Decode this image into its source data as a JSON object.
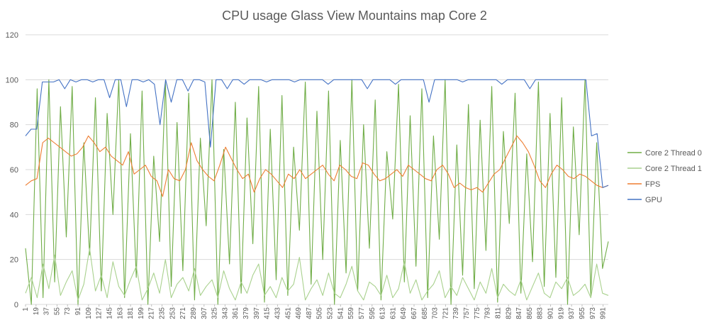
{
  "chart_data": {
    "type": "line",
    "title": "CPU usage Glass View Mountains map Core 2",
    "xlabel": "",
    "ylabel": "",
    "ylim": [
      0,
      120
    ],
    "yticks": [
      "0",
      "20",
      "40",
      "60",
      "80",
      "100",
      "120"
    ],
    "x_range": [
      1,
      1000
    ],
    "x_tick_start": 1,
    "x_tick_step": 18,
    "grid": true,
    "legend_position": "right",
    "series": [
      {
        "name": "Core 2 Thread 0",
        "color": "#70ad47",
        "values": [
          25,
          0,
          96,
          3,
          100,
          10,
          88,
          30,
          97,
          0,
          72,
          22,
          92,
          6,
          85,
          40,
          100,
          3,
          76,
          12,
          95,
          0,
          66,
          28,
          99,
          8,
          81,
          15,
          94,
          2,
          74,
          35,
          100,
          0,
          69,
          18,
          90,
          5,
          83,
          27,
          97,
          1,
          78,
          11,
          93,
          4,
          70,
          33,
          99,
          9,
          86,
          20,
          95,
          0,
          73,
          14,
          100,
          6,
          80,
          25,
          91,
          2,
          68,
          38,
          98,
          10,
          84,
          17,
          96,
          3,
          75,
          29,
          100,
          0,
          71,
          13,
          89,
          7,
          82,
          24,
          97,
          1,
          77,
          36,
          94,
          5,
          67,
          19,
          99,
          8,
          85,
          12,
          92,
          0,
          79,
          31,
          100,
          4,
          72,
          16,
          28
        ]
      },
      {
        "name": "Core 2 Thread 1",
        "color": "#a9d18e",
        "values": [
          5,
          12,
          3,
          18,
          7,
          22,
          4,
          10,
          15,
          2,
          9,
          25,
          6,
          13,
          3,
          19,
          8,
          4,
          11,
          17,
          2,
          7,
          14,
          5,
          20,
          3,
          9,
          12,
          6,
          16,
          4,
          8,
          11,
          3,
          15,
          7,
          2,
          10,
          5,
          13,
          18,
          4,
          8,
          3,
          12,
          6,
          9,
          21,
          2,
          7,
          11,
          4,
          14,
          5,
          3,
          9,
          17,
          6,
          2,
          10,
          8,
          4,
          13,
          3,
          7,
          19,
          5,
          11,
          2,
          6,
          9,
          15,
          3,
          8,
          4,
          12,
          7,
          2,
          10,
          5,
          16,
          3,
          9,
          6,
          4,
          11,
          2,
          8,
          14,
          5,
          3,
          10,
          7,
          12,
          4,
          6,
          9,
          3,
          18,
          5,
          4
        ]
      },
      {
        "name": "FPS",
        "color": "#ed7d31",
        "values": [
          53,
          55,
          56,
          72,
          74,
          72,
          70,
          68,
          66,
          67,
          70,
          75,
          72,
          68,
          70,
          66,
          64,
          62,
          68,
          58,
          60,
          62,
          57,
          55,
          48,
          60,
          56,
          55,
          60,
          72,
          64,
          60,
          57,
          55,
          62,
          70,
          65,
          60,
          56,
          58,
          50,
          56,
          60,
          58,
          55,
          52,
          58,
          56,
          60,
          56,
          58,
          60,
          62,
          58,
          55,
          62,
          60,
          57,
          56,
          63,
          62,
          58,
          55,
          56,
          58,
          60,
          57,
          62,
          60,
          58,
          56,
          55,
          60,
          62,
          58,
          52,
          54,
          52,
          51,
          52,
          50,
          54,
          58,
          60,
          65,
          70,
          75,
          72,
          68,
          62,
          55,
          52,
          58,
          62,
          60,
          57,
          56,
          58,
          57,
          55,
          53,
          52,
          53
        ]
      },
      {
        "name": "GPU",
        "color": "#4472c4",
        "values": [
          75,
          78,
          78,
          99,
          99,
          99,
          100,
          96,
          100,
          99,
          100,
          100,
          99,
          100,
          100,
          92,
          100,
          100,
          88,
          100,
          100,
          99,
          100,
          98,
          80,
          100,
          90,
          100,
          100,
          95,
          100,
          100,
          99,
          70,
          100,
          100,
          96,
          100,
          100,
          98,
          100,
          100,
          100,
          99,
          100,
          100,
          100,
          100,
          99,
          100,
          100,
          100,
          100,
          100,
          98,
          100,
          100,
          100,
          100,
          100,
          100,
          96,
          100,
          100,
          100,
          100,
          98,
          100,
          100,
          100,
          100,
          100,
          90,
          100,
          100,
          100,
          100,
          100,
          99,
          100,
          100,
          100,
          100,
          100,
          100,
          98,
          100,
          100,
          100,
          100,
          96,
          100,
          100,
          100,
          100,
          100,
          100,
          100,
          100,
          100,
          100,
          75,
          76,
          52,
          53
        ]
      }
    ]
  }
}
